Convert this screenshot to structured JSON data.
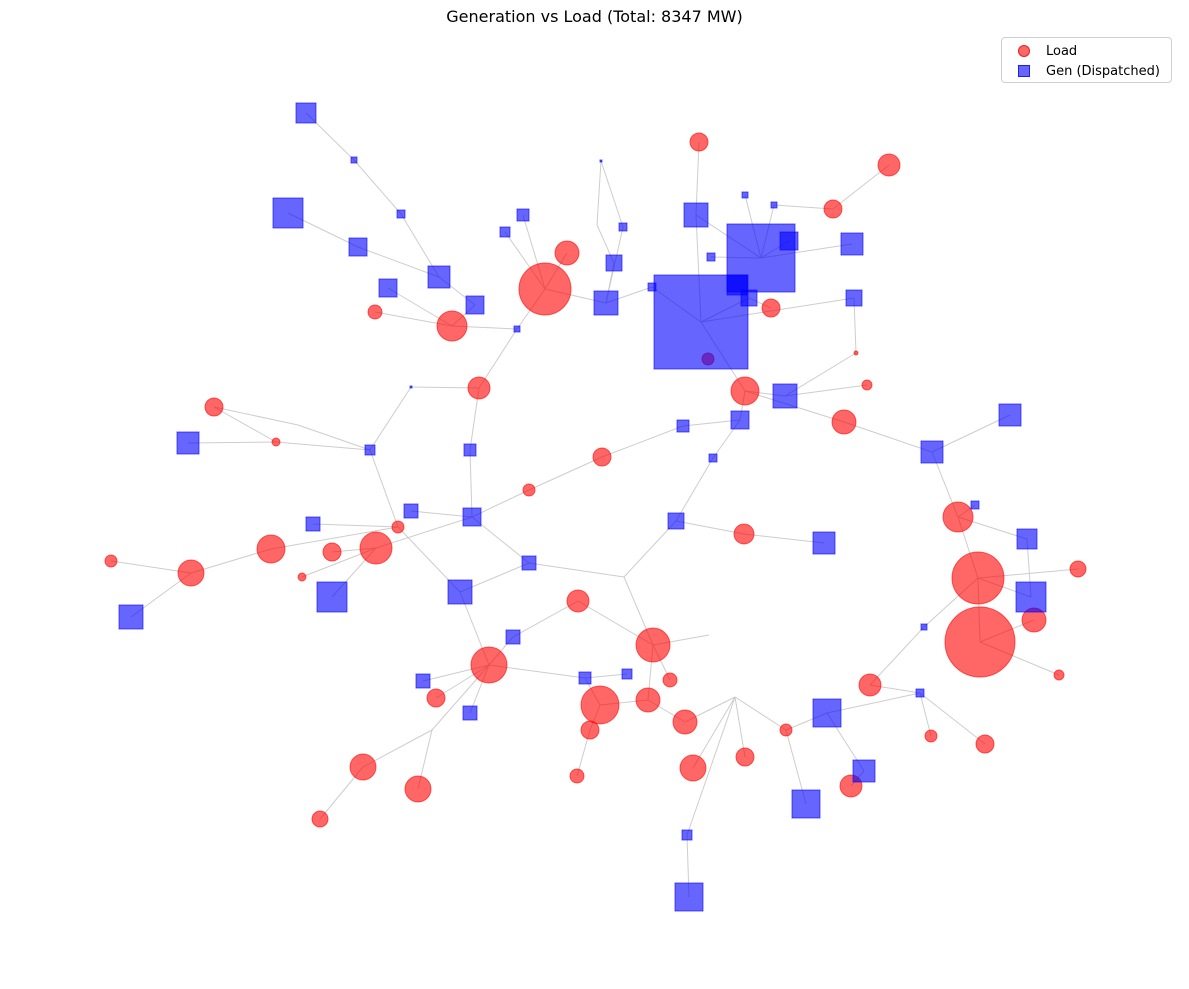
{
  "title": "Generation vs Load (Total: 8347 MW)",
  "legend": {
    "load_label": "Load",
    "gen_label": "Gen (Dispatched)",
    "load_color": "#ff0000",
    "gen_color": "#0000ff"
  },
  "colors": {
    "edge": "#c8c8c8",
    "load": "#ff0000",
    "gen": "#0000ff"
  }
}
